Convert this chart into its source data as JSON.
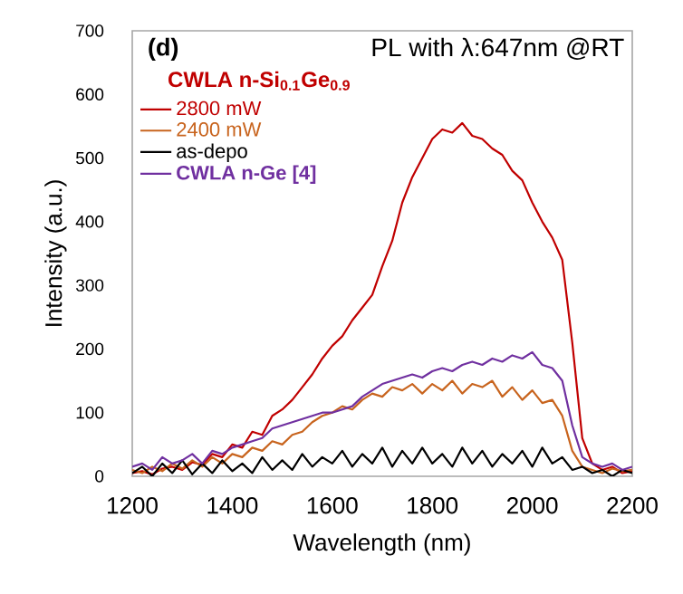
{
  "chart_data": {
    "type": "line",
    "title": "PL with λ:647nm @RT",
    "annotations": [
      "(d)"
    ],
    "xlabel": "Wavelength (nm)",
    "ylabel": "Intensity (a.u.)",
    "legend_title": "CWLA n-Si$_{0.1}$Ge$_{0.9}$",
    "legend": "top left",
    "xlim": [
      1200,
      2200
    ],
    "ylim": [
      0,
      700
    ],
    "xticks": [
      1200,
      1400,
      1600,
      1800,
      2000,
      2200
    ],
    "yticks": [
      0,
      100,
      200,
      300,
      400,
      500,
      600,
      700
    ],
    "grid": false,
    "marker": "none",
    "line_style": "solid",
    "x": [
      1200,
      1220,
      1240,
      1260,
      1280,
      1300,
      1320,
      1340,
      1360,
      1380,
      1400,
      1420,
      1440,
      1460,
      1480,
      1500,
      1520,
      1540,
      1560,
      1580,
      1600,
      1620,
      1640,
      1660,
      1680,
      1700,
      1720,
      1740,
      1760,
      1780,
      1800,
      1820,
      1840,
      1860,
      1880,
      1900,
      1920,
      1940,
      1960,
      1980,
      2000,
      2020,
      2040,
      2060,
      2080,
      2100,
      2120,
      2140,
      2160,
      2180,
      2200
    ],
    "series": [
      {
        "name": "2800 mW",
        "color": "#c00000",
        "values": [
          5,
          8,
          3,
          12,
          15,
          10,
          22,
          18,
          35,
          30,
          50,
          45,
          70,
          65,
          95,
          105,
          120,
          140,
          160,
          185,
          205,
          220,
          245,
          265,
          285,
          330,
          370,
          430,
          470,
          500,
          530,
          545,
          540,
          555,
          535,
          530,
          515,
          505,
          480,
          465,
          430,
          400,
          375,
          340,
          210,
          60,
          20,
          10,
          15,
          5,
          8
        ]
      },
      {
        "name": "2400 mW",
        "color": "#c8641e",
        "values": [
          10,
          5,
          15,
          8,
          20,
          12,
          25,
          15,
          30,
          20,
          35,
          30,
          45,
          40,
          55,
          50,
          65,
          70,
          85,
          95,
          100,
          110,
          105,
          120,
          130,
          125,
          140,
          135,
          145,
          130,
          145,
          135,
          150,
          130,
          145,
          140,
          150,
          125,
          140,
          120,
          135,
          115,
          120,
          95,
          40,
          15,
          10,
          5,
          12,
          8,
          10
        ]
      },
      {
        "name": "as-depo",
        "color": "#000000",
        "values": [
          5,
          15,
          0,
          20,
          5,
          25,
          3,
          20,
          5,
          25,
          8,
          20,
          5,
          30,
          10,
          25,
          10,
          35,
          15,
          30,
          20,
          40,
          15,
          35,
          20,
          45,
          15,
          40,
          20,
          45,
          20,
          35,
          15,
          45,
          20,
          40,
          15,
          35,
          20,
          40,
          15,
          45,
          20,
          30,
          10,
          15,
          5,
          10,
          0,
          10,
          5
        ]
      },
      {
        "name": "CWLA n-Ge [4]",
        "color": "#7030a0",
        "values": [
          15,
          20,
          10,
          30,
          20,
          25,
          35,
          20,
          40,
          35,
          45,
          50,
          55,
          60,
          75,
          80,
          85,
          90,
          95,
          100,
          100,
          105,
          110,
          125,
          135,
          145,
          150,
          155,
          160,
          155,
          165,
          170,
          165,
          175,
          180,
          175,
          185,
          180,
          190,
          185,
          195,
          175,
          170,
          150,
          80,
          30,
          20,
          15,
          20,
          10,
          15
        ]
      }
    ]
  }
}
